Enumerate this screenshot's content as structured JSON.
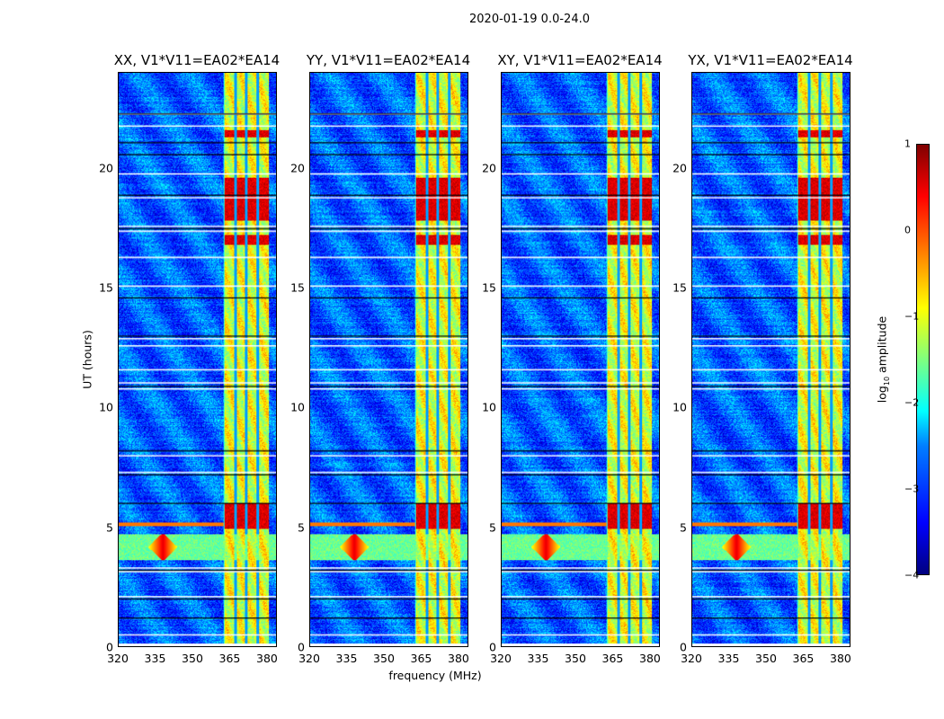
{
  "chart_data": {
    "type": "heatmap",
    "suptitle": "2020-01-19 0.0-24.0",
    "xlabel": "frequency (MHz)",
    "ylabel": "UT (hours)",
    "xlim": [
      320,
      384
    ],
    "ylim": [
      0,
      24
    ],
    "xticks": [
      "320",
      "335",
      "350",
      "365",
      "380"
    ],
    "xtick_values": [
      320,
      335,
      350,
      365,
      380
    ],
    "yticks": [
      "0",
      "5",
      "10",
      "15",
      "20"
    ],
    "ytick_values": [
      0,
      5,
      10,
      15,
      20
    ],
    "colorbar": {
      "label_main": "log",
      "label_sub": "10",
      "label_rest": " amplitude",
      "range": [
        -4,
        1
      ],
      "ticks": [
        "1",
        "0",
        "−1",
        "−2",
        "−3",
        "−4"
      ],
      "tick_values": [
        1,
        0,
        -1,
        -2,
        -3,
        -4
      ],
      "colormap": "jet"
    },
    "panels": [
      {
        "title": "XX, V1*V11=EA02*EA14",
        "seed": 1
      },
      {
        "title": "YY, V1*V11=EA02*EA14",
        "seed": 2
      },
      {
        "title": "XY, V1*V11=EA02*EA14",
        "seed": 3
      },
      {
        "title": "YX, V1*V11=EA02*EA14",
        "seed": 4
      }
    ],
    "background_level": -2.9,
    "rfi_band_mhz": [
      362.5,
      381
    ],
    "rfi_band_level": -1.0,
    "band_gaps_mhz": [
      367.5,
      372,
      376.5
    ],
    "strong_rfi_hours": [
      [
        17.8,
        19.6
      ],
      [
        4.9,
        6.0
      ],
      [
        21.3,
        21.6
      ],
      [
        16.8,
        17.2
      ]
    ],
    "burst": {
      "hours": [
        3.6,
        4.7
      ],
      "center_mhz": 338,
      "level": 0.5
    },
    "flagged_hours_white": [
      0.5,
      2.1,
      3.15,
      3.3,
      7.3,
      8.0,
      10.8,
      11.05,
      11.6,
      12.6,
      12.9,
      15.1,
      16.3,
      17.4,
      17.6,
      18.8,
      19.8,
      21.8,
      22.3
    ],
    "flagged_hours_black": [
      1.2,
      2.0,
      3.2,
      6.0,
      7.2,
      8.2,
      10.9,
      13.0,
      14.6,
      17.5,
      18.9,
      20.6,
      21.1,
      22.3
    ]
  }
}
